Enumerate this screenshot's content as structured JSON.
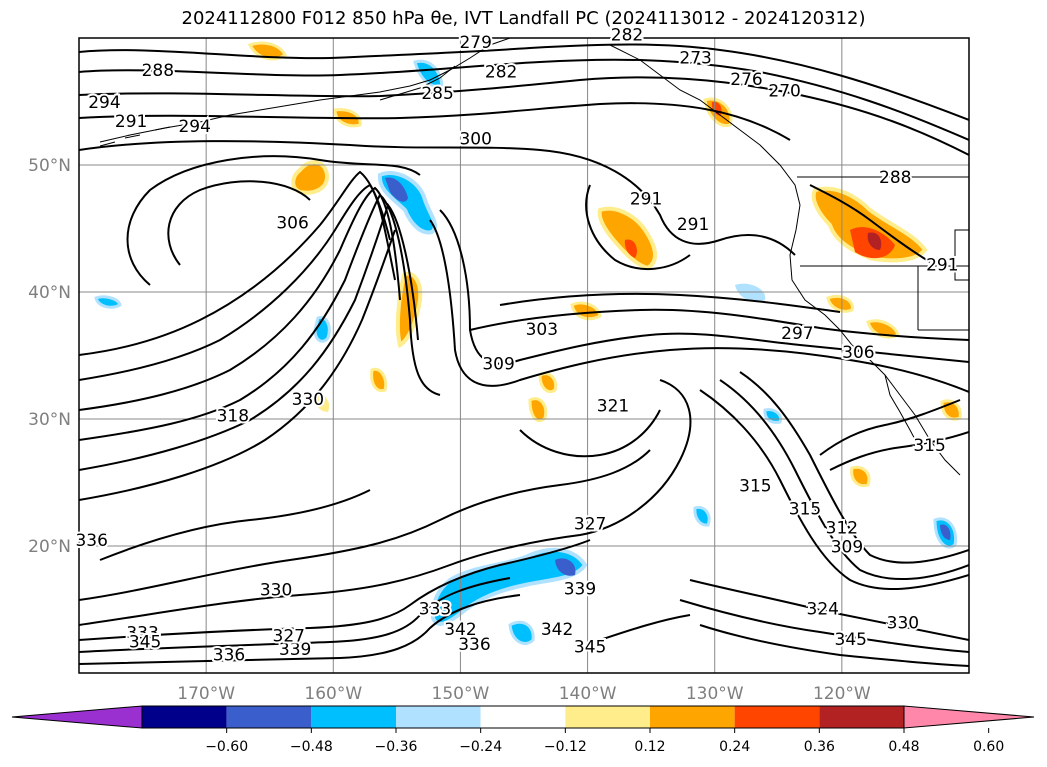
{
  "chart_data": {
    "type": "heatmap",
    "title": "2024112800 F012 850 hPa θe, IVT Landfall PC (2024113012 - 2024120312)",
    "lon_range": [
      -180,
      -110
    ],
    "lat_range": [
      10,
      60
    ],
    "lat_ticks": [
      {
        "value": 50,
        "label": "50°N"
      },
      {
        "value": 40,
        "label": "40°N"
      },
      {
        "value": 30,
        "label": "30°N"
      },
      {
        "value": 20,
        "label": "20°N"
      }
    ],
    "lon_ticks": [
      {
        "value": -170,
        "label": "170°W"
      },
      {
        "value": -160,
        "label": "160°W"
      },
      {
        "value": -150,
        "label": "150°W"
      },
      {
        "value": -140,
        "label": "140°W"
      },
      {
        "value": -130,
        "label": "130°W"
      },
      {
        "value": -120,
        "label": "120°W"
      }
    ],
    "grid": true,
    "colorbar": {
      "orientation": "horizontal",
      "extend": "both",
      "colors": [
        "#9b30d0",
        "#00008b",
        "#3a5fcd",
        "#00bfff",
        "#b0e2ff",
        "#ffffff",
        "#ffec8b",
        "#ffa500",
        "#ff4500",
        "#b22222",
        "#ff88aa"
      ],
      "ticks": [
        "-0.60",
        "-0.48",
        "-0.36",
        "-0.24",
        "-0.12",
        "0.12",
        "0.24",
        "0.36",
        "0.48",
        "0.60"
      ]
    },
    "contour_labels": [
      {
        "text": "279",
        "lon": -148.8,
        "lat": 59.2
      },
      {
        "text": "282",
        "lon": -146.8,
        "lat": 56.9
      },
      {
        "text": "285",
        "lon": -151.8,
        "lat": 55.2
      },
      {
        "text": "288",
        "lon": -173.8,
        "lat": 57.0
      },
      {
        "text": "294",
        "lon": -178.0,
        "lat": 54.5
      },
      {
        "text": "291",
        "lon": -175.9,
        "lat": 53.0
      },
      {
        "text": "294",
        "lon": -170.9,
        "lat": 52.6
      },
      {
        "text": "300",
        "lon": -148.8,
        "lat": 51.6
      },
      {
        "text": "306",
        "lon": -163.2,
        "lat": 45.0
      },
      {
        "text": "291",
        "lon": -135.4,
        "lat": 46.9
      },
      {
        "text": "291",
        "lon": -131.7,
        "lat": 44.9
      },
      {
        "text": "288",
        "lon": -115.8,
        "lat": 48.6
      },
      {
        "text": "291",
        "lon": -112.1,
        "lat": 41.7
      },
      {
        "text": "303",
        "lon": -143.6,
        "lat": 36.6
      },
      {
        "text": "309",
        "lon": -147.0,
        "lat": 33.9
      },
      {
        "text": "321",
        "lon": -138.0,
        "lat": 30.6
      },
      {
        "text": "297",
        "lon": -123.5,
        "lat": 36.3
      },
      {
        "text": "306",
        "lon": -118.7,
        "lat": 34.8
      },
      {
        "text": "318",
        "lon": -167.9,
        "lat": 29.8
      },
      {
        "text": "330",
        "lon": -162.0,
        "lat": 31.1
      },
      {
        "text": "315",
        "lon": -113.1,
        "lat": 27.5
      },
      {
        "text": "315",
        "lon": -126.8,
        "lat": 24.3
      },
      {
        "text": "315",
        "lon": -122.9,
        "lat": 22.5
      },
      {
        "text": "312",
        "lon": -120.0,
        "lat": 21.0
      },
      {
        "text": "309",
        "lon": -119.6,
        "lat": 19.5
      },
      {
        "text": "327",
        "lon": -139.8,
        "lat": 21.3
      },
      {
        "text": "336",
        "lon": -179.0,
        "lat": 20.0
      },
      {
        "text": "330",
        "lon": -164.5,
        "lat": 16.1
      },
      {
        "text": "339",
        "lon": -140.6,
        "lat": 16.2
      },
      {
        "text": "333",
        "lon": -152.0,
        "lat": 14.6
      },
      {
        "text": "342",
        "lon": -150.0,
        "lat": 13.0
      },
      {
        "text": "342",
        "lon": -142.4,
        "lat": 13.0
      },
      {
        "text": "336",
        "lon": -148.9,
        "lat": 11.8
      },
      {
        "text": "345",
        "lon": -139.8,
        "lat": 11.6
      },
      {
        "text": "324",
        "lon": -121.5,
        "lat": 14.6
      },
      {
        "text": "330",
        "lon": -115.2,
        "lat": 13.5
      },
      {
        "text": "345",
        "lon": -119.3,
        "lat": 12.2
      },
      {
        "text": "336",
        "lon": -168.2,
        "lat": 11.0
      },
      {
        "text": "339",
        "lon": -163.0,
        "lat": 11.4
      },
      {
        "text": "327",
        "lon": -163.5,
        "lat": 12.5
      },
      {
        "text": "333",
        "lon": -175.0,
        "lat": 12.7
      },
      {
        "text": "345",
        "lon": -174.8,
        "lat": 12.0
      },
      {
        "text": "273",
        "lon": -131.5,
        "lat": 58.0
      },
      {
        "text": "276",
        "lon": -127.5,
        "lat": 56.3
      },
      {
        "text": "270",
        "lon": -124.5,
        "lat": 55.4
      },
      {
        "text": "282",
        "lon": -136.9,
        "lat": 59.8
      }
    ]
  }
}
